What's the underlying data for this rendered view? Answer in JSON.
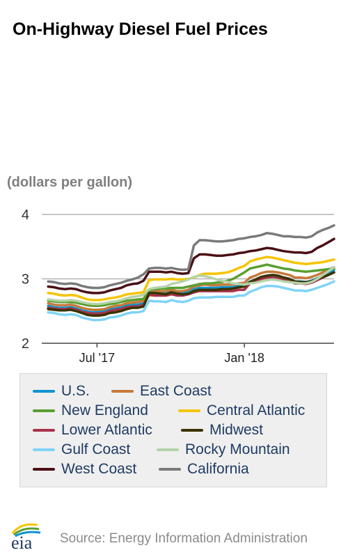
{
  "chart_data": {
    "type": "line",
    "title": "On-Highway Diesel Fuel Prices",
    "ylabel": "(dollars per gallon)",
    "ylim": [
      2,
      4
    ],
    "yticks": [
      "2",
      "3",
      "4"
    ],
    "xticks": [
      "Jul '17",
      "Jan '18"
    ],
    "grid": true,
    "legend_position": "bottom",
    "x": [
      "2017-05-01",
      "2017-05-08",
      "2017-05-15",
      "2017-05-22",
      "2017-05-29",
      "2017-06-05",
      "2017-06-12",
      "2017-06-19",
      "2017-06-26",
      "2017-07-03",
      "2017-07-10",
      "2017-07-17",
      "2017-07-24",
      "2017-07-31",
      "2017-08-07",
      "2017-08-14",
      "2017-08-21",
      "2017-08-28",
      "2017-09-04",
      "2017-09-11",
      "2017-09-18",
      "2017-09-25",
      "2017-10-02",
      "2017-10-09",
      "2017-10-16",
      "2017-10-23",
      "2017-10-30",
      "2017-11-06",
      "2017-11-13",
      "2017-11-20",
      "2017-11-27",
      "2017-12-04",
      "2017-12-11",
      "2017-12-18",
      "2017-12-25",
      "2018-01-01",
      "2018-01-08",
      "2018-01-15",
      "2018-01-22",
      "2018-01-29",
      "2018-02-05",
      "2018-02-12",
      "2018-02-19",
      "2018-02-26",
      "2018-03-05",
      "2018-03-12",
      "2018-03-19",
      "2018-03-26",
      "2018-04-02",
      "2018-04-09",
      "2018-04-16",
      "2018-04-23"
    ],
    "series": [
      {
        "name": "U.S.",
        "color": "#0d94d0",
        "values": [
          2.58,
          2.56,
          2.55,
          2.55,
          2.56,
          2.54,
          2.51,
          2.49,
          2.48,
          2.49,
          2.5,
          2.53,
          2.54,
          2.56,
          2.59,
          2.6,
          2.6,
          2.62,
          2.81,
          2.8,
          2.8,
          2.79,
          2.82,
          2.8,
          2.79,
          2.8,
          2.84,
          2.86,
          2.86,
          2.86,
          2.86,
          2.87,
          2.87,
          2.87,
          2.89,
          2.89,
          2.96,
          2.98,
          3.02,
          3.04,
          3.05,
          3.04,
          3.02,
          3.0,
          2.96,
          2.96,
          2.95,
          2.97,
          3.01,
          3.05,
          3.08,
          3.14
        ]
      },
      {
        "name": "East Coast",
        "color": "#c67a3a",
        "values": [
          2.62,
          2.6,
          2.59,
          2.59,
          2.6,
          2.58,
          2.55,
          2.53,
          2.52,
          2.52,
          2.53,
          2.56,
          2.58,
          2.59,
          2.62,
          2.63,
          2.64,
          2.66,
          2.82,
          2.82,
          2.81,
          2.81,
          2.83,
          2.81,
          2.81,
          2.83,
          2.88,
          2.9,
          2.91,
          2.9,
          2.9,
          2.91,
          2.91,
          2.91,
          2.93,
          2.94,
          3.02,
          3.05,
          3.09,
          3.11,
          3.11,
          3.1,
          3.08,
          3.06,
          3.02,
          3.02,
          3.01,
          3.03,
          3.06,
          3.1,
          3.14,
          3.18
        ]
      },
      {
        "name": "New England",
        "color": "#5a9e32",
        "values": [
          2.66,
          2.65,
          2.64,
          2.64,
          2.64,
          2.63,
          2.61,
          2.59,
          2.58,
          2.58,
          2.59,
          2.61,
          2.62,
          2.64,
          2.66,
          2.67,
          2.68,
          2.69,
          2.82,
          2.84,
          2.85,
          2.85,
          2.86,
          2.86,
          2.86,
          2.88,
          2.9,
          2.92,
          2.93,
          2.93,
          2.94,
          2.95,
          2.97,
          3.0,
          3.05,
          3.1,
          3.16,
          3.18,
          3.2,
          3.22,
          3.2,
          3.18,
          3.16,
          3.15,
          3.13,
          3.12,
          3.11,
          3.12,
          3.13,
          3.14,
          3.15,
          3.16
        ]
      },
      {
        "name": "Central Atlantic",
        "color": "#f5c400",
        "values": [
          2.78,
          2.77,
          2.75,
          2.74,
          2.75,
          2.74,
          2.71,
          2.68,
          2.67,
          2.67,
          2.68,
          2.7,
          2.71,
          2.73,
          2.76,
          2.77,
          2.78,
          2.79,
          2.98,
          2.99,
          2.99,
          2.99,
          3.0,
          2.99,
          2.99,
          3.0,
          3.02,
          3.06,
          3.08,
          3.08,
          3.08,
          3.09,
          3.1,
          3.13,
          3.17,
          3.2,
          3.27,
          3.3,
          3.32,
          3.34,
          3.33,
          3.31,
          3.29,
          3.27,
          3.25,
          3.24,
          3.23,
          3.24,
          3.25,
          3.26,
          3.28,
          3.3
        ]
      },
      {
        "name": "Lower Atlantic",
        "color": "#a8324a",
        "values": [
          2.55,
          2.54,
          2.53,
          2.53,
          2.54,
          2.52,
          2.49,
          2.47,
          2.46,
          2.46,
          2.47,
          2.5,
          2.52,
          2.53,
          2.56,
          2.57,
          2.57,
          2.6,
          2.75,
          2.74,
          2.74,
          2.74,
          2.76,
          2.74,
          2.74,
          2.76,
          2.79,
          2.81,
          2.81,
          2.81,
          2.81,
          2.81,
          2.81,
          2.81,
          2.83,
          2.83,
          2.93,
          2.96,
          3.0,
          3.02,
          3.02,
          3.01,
          2.99,
          2.97,
          2.93,
          2.93,
          2.92,
          2.94,
          2.98,
          3.02,
          3.06,
          3.1
        ]
      },
      {
        "name": "Midwest",
        "color": "#3a3300",
        "values": [
          2.53,
          2.52,
          2.51,
          2.51,
          2.52,
          2.5,
          2.47,
          2.44,
          2.43,
          2.43,
          2.44,
          2.47,
          2.48,
          2.5,
          2.53,
          2.55,
          2.55,
          2.57,
          2.78,
          2.78,
          2.77,
          2.76,
          2.79,
          2.77,
          2.76,
          2.77,
          2.81,
          2.83,
          2.83,
          2.83,
          2.83,
          2.84,
          2.84,
          2.85,
          2.87,
          2.88,
          2.95,
          2.99,
          3.03,
          3.05,
          3.06,
          3.05,
          3.02,
          3.0,
          2.96,
          2.95,
          2.95,
          2.96,
          3.0,
          3.03,
          3.06,
          3.1
        ]
      },
      {
        "name": "Gulf Coast",
        "color": "#7fd3f7",
        "values": [
          2.48,
          2.47,
          2.45,
          2.44,
          2.45,
          2.44,
          2.4,
          2.38,
          2.36,
          2.36,
          2.37,
          2.4,
          2.41,
          2.43,
          2.46,
          2.48,
          2.48,
          2.5,
          2.66,
          2.65,
          2.65,
          2.64,
          2.67,
          2.65,
          2.64,
          2.66,
          2.7,
          2.71,
          2.71,
          2.71,
          2.72,
          2.72,
          2.72,
          2.72,
          2.74,
          2.74,
          2.8,
          2.83,
          2.87,
          2.89,
          2.89,
          2.88,
          2.86,
          2.84,
          2.82,
          2.82,
          2.81,
          2.83,
          2.86,
          2.89,
          2.92,
          2.96
        ]
      },
      {
        "name": "Rocky Mountain",
        "color": "#b5d3a8",
        "values": [
          2.68,
          2.67,
          2.66,
          2.66,
          2.67,
          2.66,
          2.64,
          2.62,
          2.61,
          2.61,
          2.62,
          2.64,
          2.65,
          2.67,
          2.7,
          2.72,
          2.73,
          2.75,
          2.84,
          2.86,
          2.87,
          2.88,
          2.92,
          2.94,
          2.96,
          2.99,
          3.03,
          3.05,
          3.04,
          3.02,
          2.99,
          2.97,
          2.95,
          2.93,
          2.92,
          2.91,
          2.93,
          2.94,
          2.96,
          2.98,
          2.99,
          2.98,
          2.96,
          2.95,
          2.94,
          2.93,
          2.93,
          2.95,
          3.0,
          3.06,
          3.12,
          3.18
        ]
      },
      {
        "name": "West Coast",
        "color": "#4a0f14",
        "values": [
          2.88,
          2.87,
          2.85,
          2.84,
          2.85,
          2.84,
          2.81,
          2.79,
          2.78,
          2.78,
          2.79,
          2.82,
          2.84,
          2.86,
          2.9,
          2.92,
          2.93,
          2.97,
          3.11,
          3.11,
          3.11,
          3.1,
          3.11,
          3.09,
          3.08,
          3.09,
          3.32,
          3.38,
          3.38,
          3.37,
          3.36,
          3.36,
          3.37,
          3.38,
          3.4,
          3.41,
          3.43,
          3.44,
          3.46,
          3.48,
          3.47,
          3.45,
          3.43,
          3.42,
          3.41,
          3.41,
          3.4,
          3.42,
          3.48,
          3.52,
          3.57,
          3.62
        ]
      },
      {
        "name": "California",
        "color": "#7a7a7a",
        "values": [
          2.96,
          2.95,
          2.93,
          2.92,
          2.93,
          2.92,
          2.89,
          2.87,
          2.86,
          2.86,
          2.87,
          2.9,
          2.92,
          2.94,
          2.97,
          2.99,
          3.02,
          3.07,
          3.16,
          3.17,
          3.17,
          3.16,
          3.17,
          3.15,
          3.14,
          3.15,
          3.52,
          3.6,
          3.6,
          3.59,
          3.58,
          3.58,
          3.59,
          3.6,
          3.62,
          3.63,
          3.65,
          3.66,
          3.68,
          3.71,
          3.7,
          3.68,
          3.66,
          3.66,
          3.65,
          3.65,
          3.64,
          3.66,
          3.72,
          3.76,
          3.79,
          3.83
        ]
      }
    ]
  },
  "source": {
    "text": "Source: Energy Information Administration",
    "logo_text": "eia"
  }
}
